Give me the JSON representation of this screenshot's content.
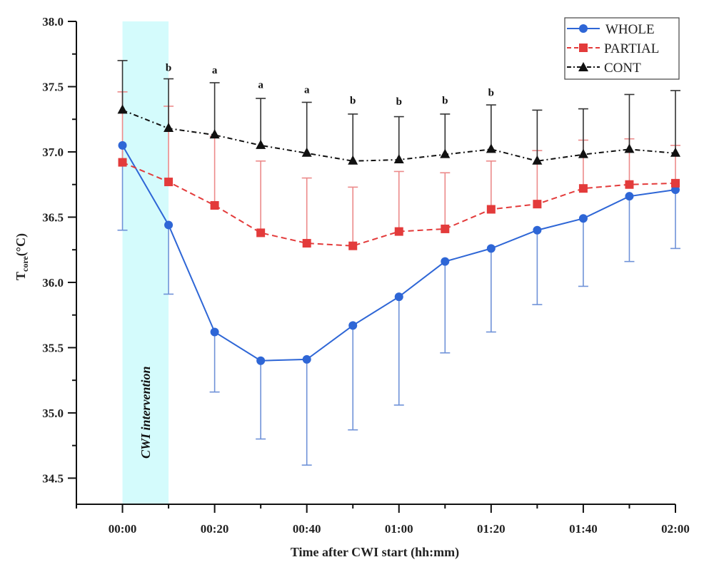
{
  "chart_data": {
    "type": "line",
    "title": "",
    "xlabel": "Time after CWI start (hh:mm)",
    "ylabel_main": "T",
    "ylabel_sub": "core",
    "ylabel_unit": "(°C)",
    "ylim": [
      34.3,
      38.0
    ],
    "y_ticks": [
      "34.5",
      "35.0",
      "35.5",
      "36.0",
      "36.5",
      "37.0",
      "37.5",
      "38.0"
    ],
    "y_tick_values": [
      34.5,
      35.0,
      35.5,
      36.0,
      36.5,
      37.0,
      37.5,
      38.0
    ],
    "x_minutes": [
      0,
      10,
      20,
      30,
      40,
      50,
      60,
      70,
      80,
      90,
      100,
      110,
      120
    ],
    "xlim_minutes": [
      -10,
      120
    ],
    "x_tick_labels": [
      "00:00",
      "00:20",
      "00:40",
      "01:00",
      "01:20",
      "01:40",
      "02:00"
    ],
    "x_tick_label_minutes": [
      0,
      20,
      40,
      60,
      80,
      100,
      120
    ],
    "grid": false,
    "legend_position": "top-right",
    "shaded_region": {
      "label": "CWI intervention",
      "from_minutes": 0,
      "to_minutes": 10,
      "color": "#d4fbfc"
    },
    "series": [
      {
        "name": "WHOLE",
        "color": "#2e66d6",
        "error_color": "#6f92d8",
        "marker": "circle",
        "line_style": "solid",
        "error_direction": "down",
        "values": [
          37.05,
          36.44,
          35.62,
          35.4,
          35.41,
          35.67,
          35.89,
          36.16,
          36.26,
          36.4,
          36.49,
          36.66,
          36.71
        ],
        "error_ends": [
          36.4,
          35.91,
          35.16,
          34.8,
          34.6,
          34.87,
          35.06,
          35.46,
          35.62,
          35.83,
          35.97,
          36.16,
          36.26
        ]
      },
      {
        "name": "PARTIAL",
        "color": "#e33b3b",
        "error_color": "#ec8a8a",
        "marker": "square",
        "line_style": "dashed",
        "error_direction": "up",
        "values": [
          36.92,
          36.77,
          36.59,
          36.38,
          36.3,
          36.28,
          36.39,
          36.41,
          36.56,
          36.6,
          36.72,
          36.75,
          36.76
        ],
        "error_ends": [
          37.46,
          37.35,
          37.12,
          36.93,
          36.8,
          36.73,
          36.85,
          36.84,
          36.93,
          37.01,
          37.09,
          37.1,
          37.05
        ]
      },
      {
        "name": "CONT",
        "color": "#111111",
        "error_color": "#333333",
        "marker": "triangle",
        "line_style": "dash-dot",
        "error_direction": "up",
        "values": [
          37.32,
          37.18,
          37.13,
          37.05,
          36.99,
          36.93,
          36.94,
          36.98,
          37.02,
          36.93,
          36.98,
          37.02,
          36.99
        ],
        "error_ends": [
          37.7,
          37.56,
          37.53,
          37.41,
          37.38,
          37.29,
          37.27,
          37.29,
          37.36,
          37.32,
          37.33,
          37.44,
          37.47
        ]
      }
    ],
    "annotations": [
      {
        "text": "b",
        "x_minutes": 10,
        "y": 37.62
      },
      {
        "text": "a",
        "x_minutes": 20,
        "y": 37.6
      },
      {
        "text": "a",
        "x_minutes": 30,
        "y": 37.49
      },
      {
        "text": "a",
        "x_minutes": 40,
        "y": 37.45
      },
      {
        "text": "b",
        "x_minutes": 50,
        "y": 37.37
      },
      {
        "text": "b",
        "x_minutes": 60,
        "y": 37.36
      },
      {
        "text": "b",
        "x_minutes": 70,
        "y": 37.37
      },
      {
        "text": "b",
        "x_minutes": 80,
        "y": 37.43
      }
    ]
  }
}
